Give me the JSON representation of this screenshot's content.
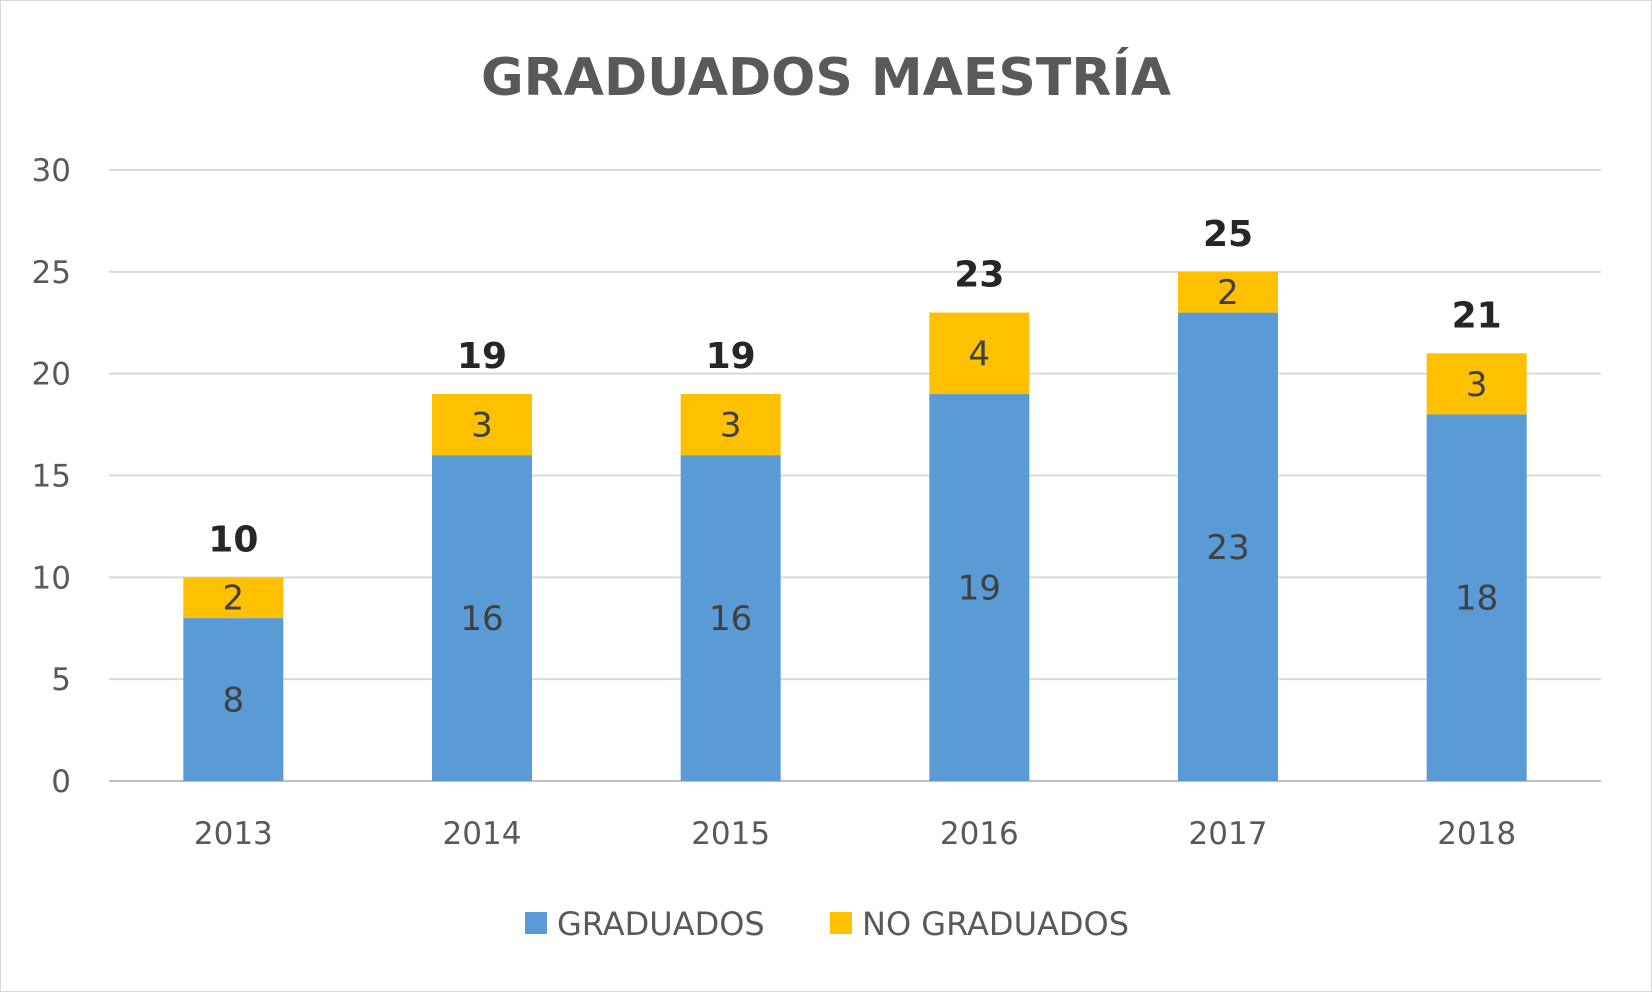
{
  "chart_data": {
    "type": "bar",
    "stacked": true,
    "title": "GRADUADOS MAESTRÍA",
    "categories": [
      "2013",
      "2014",
      "2015",
      "2016",
      "2017",
      "2018"
    ],
    "series": [
      {
        "name": "GRADUADOS",
        "color": "#5B9BD5",
        "values": [
          8,
          16,
          16,
          19,
          23,
          18
        ]
      },
      {
        "name": "NO GRADUADOS",
        "color": "#FFC000",
        "values": [
          2,
          3,
          3,
          4,
          2,
          3
        ]
      }
    ],
    "totals": [
      10,
      19,
      19,
      23,
      25,
      21
    ],
    "ylim": [
      0,
      30
    ],
    "yticks": [
      0,
      5,
      10,
      15,
      20,
      25,
      30
    ],
    "grid": true,
    "legend": "bottom"
  }
}
